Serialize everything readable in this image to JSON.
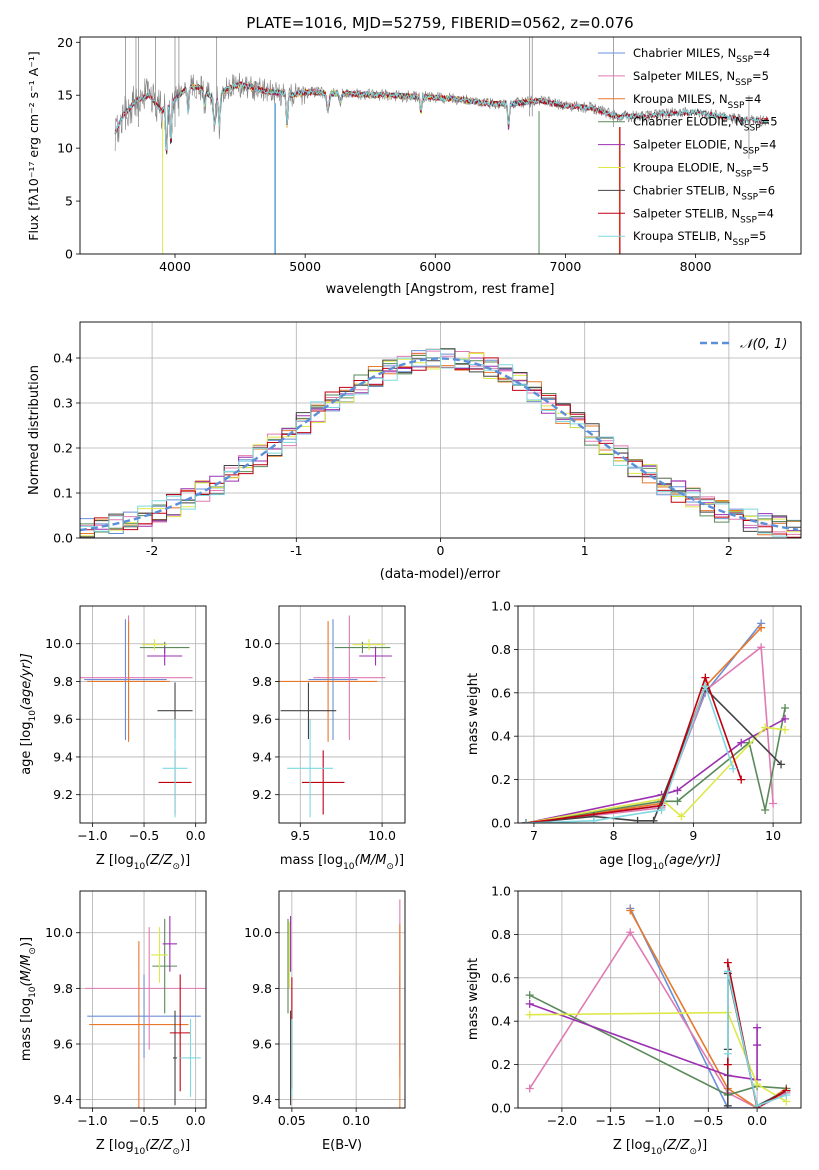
{
  "colors": {
    "Chabrier MILES": "#6a8fd8",
    "Salpeter MILES": "#e07ab4",
    "Kroupa MILES": "#e8782a",
    "Chabrier ELODIE": "#5a8a5a",
    "Salpeter ELODIE": "#9b30b0",
    "Kroupa ELODIE": "#dde84a",
    "Chabrier STELIB": "#444444",
    "Salpeter STELIB": "#c00010",
    "Kroupa STELIB": "#7fd8e0"
  },
  "chart_data": [
    {
      "id": "spectrum",
      "type": "line",
      "title": "PLATE=1016, MJD=52759, FIBERID=0562, z=0.076",
      "xlabel": "wavelength [Angstrom, rest frame]",
      "ylabel": "Flux [fλ10⁻¹⁷ erg cm⁻² s⁻¹ A⁻¹]",
      "xlim": [
        3270,
        8810
      ],
      "ylim": [
        0,
        20.5
      ],
      "xticks": [
        4000,
        5000,
        6000,
        7000,
        8000
      ],
      "yticks": [
        0,
        5,
        10,
        15,
        20
      ],
      "grid": false,
      "legend_position": "top-right",
      "data_color": "#808080",
      "data_approx": {
        "x": [
          3540,
          3600,
          3700,
          3800,
          3900,
          4000,
          4100,
          4200,
          4300,
          4400,
          4500,
          4600,
          4700,
          4800,
          4900,
          5000,
          5200,
          5400,
          5600,
          5800,
          6000,
          6200,
          6400,
          6600,
          6800,
          7000,
          7200,
          7400,
          7600,
          7800,
          8000,
          8200,
          8400,
          8560
        ],
        "y": [
          11.5,
          13.0,
          14.5,
          15.0,
          13.5,
          14.6,
          15.8,
          15.7,
          14.6,
          15.6,
          16.0,
          15.7,
          15.4,
          15.2,
          15.0,
          15.3,
          15.2,
          15.1,
          15.0,
          14.9,
          14.8,
          14.6,
          14.2,
          14.2,
          14.5,
          14.0,
          13.8,
          13.0,
          13.0,
          13.3,
          13.4,
          13.0,
          12.6,
          12.6
        ]
      },
      "series": [
        {
          "name": "Chabrier MILES, N_SSP=4",
          "label_main": "Chabrier MILES, N",
          "label_sub": "SSP",
          "label_tail": "=4",
          "key": "Chabrier MILES",
          "xrange": [
            3540,
            7410
          ]
        },
        {
          "name": "Salpeter MILES, N_SSP=5",
          "label_main": "Salpeter MILES, N",
          "label_sub": "SSP",
          "label_tail": "=5",
          "key": "Salpeter MILES",
          "xrange": [
            3540,
            7410
          ]
        },
        {
          "name": "Kroupa MILES, N_SSP=4",
          "label_main": "Kroupa MILES, N",
          "label_sub": "SSP",
          "label_tail": "=4",
          "key": "Kroupa MILES",
          "xrange": [
            3540,
            7410
          ]
        },
        {
          "name": "Chabrier ELODIE, N_SSP=5",
          "label_main": "Chabrier ELODIE, N",
          "label_sub": "SSP",
          "label_tail": "=5",
          "key": "Chabrier ELODIE",
          "xrange": [
            3900,
            6800
          ]
        },
        {
          "name": "Salpeter ELODIE, N_SSP=4",
          "label_main": "Salpeter ELODIE, N",
          "label_sub": "SSP",
          "label_tail": "=4",
          "key": "Salpeter ELODIE",
          "xrange": [
            3900,
            6800
          ]
        },
        {
          "name": "Kroupa ELODIE, N_SSP=5",
          "label_main": "Kroupa ELODIE, N",
          "label_sub": "SSP",
          "label_tail": "=5",
          "key": "Kroupa ELODIE",
          "xrange": [
            3900,
            6800
          ]
        },
        {
          "name": "Chabrier STELIB, N_SSP=6",
          "label_main": "Chabrier STELIB, N",
          "label_sub": "SSP",
          "label_tail": "=6",
          "key": "Chabrier STELIB",
          "xrange": [
            3540,
            8560
          ]
        },
        {
          "name": "Salpeter STELIB, N_SSP=4",
          "label_main": "Salpeter STELIB, N",
          "label_sub": "SSP",
          "label_tail": "=4",
          "key": "Salpeter STELIB",
          "xrange": [
            3540,
            8560
          ]
        },
        {
          "name": "Kroupa STELIB, N_SSP=5",
          "label_main": "Kroupa STELIB, N",
          "label_sub": "SSP",
          "label_tail": "=5",
          "key": "Kroupa STELIB",
          "xrange": [
            3540,
            8560
          ]
        }
      ]
    },
    {
      "id": "residuals",
      "type": "histogram",
      "xlabel": "(data-model)/error",
      "ylabel": "Normed distribution",
      "xlim": [
        -2.5,
        2.5
      ],
      "ylim": [
        0,
        0.48
      ],
      "xticks": [
        -2,
        -1,
        0,
        1,
        2
      ],
      "yticks": [
        0.0,
        0.1,
        0.2,
        0.3,
        0.4
      ],
      "ytick_labels": [
        "0.0",
        "0.1",
        "0.2",
        "0.3",
        "0.4"
      ],
      "grid": true,
      "legend_position": "top-right",
      "legend_label": "𝒩(0, 1)",
      "normal_curve": {
        "mean": 0,
        "sigma": 1,
        "color": "#5b8fd9",
        "dashed": true
      },
      "bin_width": 0.1
    },
    {
      "id": "age_vs_Z",
      "type": "errorbar",
      "xlabel_main": "Z [log",
      "xlabel_sub": "10",
      "xlabel_tail": "(Z/Z",
      "xlabel_sun": "⊙",
      "xlabel_end": ")]",
      "ylabel_main": "age  [log",
      "ylabel_sub": "10",
      "ylabel_tail": "(age/yr)]",
      "xlim": [
        -1.12,
        0.1
      ],
      "ylim": [
        9.05,
        10.2
      ],
      "xticks": [
        -1.0,
        -0.5,
        0.0
      ],
      "xtick_labels": [
        "−1.0",
        "−0.5",
        "0.0"
      ],
      "yticks": [
        9.2,
        9.4,
        9.6,
        9.8,
        10.0
      ],
      "ytick_labels": [
        "9.2",
        "9.4",
        "9.6",
        "9.8",
        "10.0"
      ],
      "grid": true,
      "points": [
        {
          "key": "Chabrier MILES",
          "x": -0.68,
          "xerr": 0.4,
          "y": 9.81,
          "yerr": 0.32
        },
        {
          "key": "Salpeter MILES",
          "x": -0.65,
          "xerr": 0.62,
          "y": 9.82,
          "yerr": 0.33
        },
        {
          "key": "Kroupa MILES",
          "x": -0.65,
          "xerr": 0.4,
          "y": 9.8,
          "yerr": 0.32
        },
        {
          "key": "Chabrier ELODIE",
          "x": -0.3,
          "xerr": 0.24,
          "y": 9.98,
          "yerr": 0.03
        },
        {
          "key": "Salpeter ELODIE",
          "x": -0.3,
          "xerr": 0.17,
          "y": 9.935,
          "yerr": 0.05
        },
        {
          "key": "Kroupa ELODIE",
          "x": -0.4,
          "xerr": 0.12,
          "y": 9.995,
          "yerr": 0.03
        },
        {
          "key": "Chabrier STELIB",
          "x": -0.2,
          "xerr": 0.17,
          "y": 9.645,
          "yerr": 0.15
        },
        {
          "key": "Salpeter STELIB",
          "x": -0.2,
          "xerr": 0.16,
          "y": 9.265,
          "yerr": 0.17
        },
        {
          "key": "Kroupa STELIB",
          "x": -0.2,
          "xerr": 0.12,
          "y": 9.34,
          "yerr": 0.26
        }
      ]
    },
    {
      "id": "age_vs_mass",
      "type": "errorbar",
      "xlabel_main": "mass [log",
      "xlabel_sub": "10",
      "xlabel_tail": "(M/M",
      "xlabel_sun": "⊙",
      "xlabel_end": ")]",
      "xlim": [
        9.37,
        10.14
      ],
      "ylim": [
        9.05,
        10.2
      ],
      "xticks": [
        9.5,
        10.0
      ],
      "xtick_labels": [
        "9.5",
        "10.0"
      ],
      "yticks": [
        9.2,
        9.4,
        9.6,
        9.8,
        10.0
      ],
      "ytick_labels": [
        "9.2",
        "9.4",
        "9.6",
        "9.8",
        "10.0"
      ],
      "grid": true,
      "points": [
        {
          "key": "Chabrier MILES",
          "x": 9.7,
          "xerr": 0.15,
          "y": 9.81,
          "yerr": 0.32
        },
        {
          "key": "Salpeter MILES",
          "x": 9.8,
          "xerr": 0.22,
          "y": 9.82,
          "yerr": 0.33
        },
        {
          "key": "Kroupa MILES",
          "x": 9.67,
          "xerr": 0.3,
          "y": 9.8,
          "yerr": 0.32
        },
        {
          "key": "Chabrier ELODIE",
          "x": 9.88,
          "xerr": 0.17,
          "y": 9.98,
          "yerr": 0.03
        },
        {
          "key": "Salpeter ELODIE",
          "x": 9.96,
          "xerr": 0.1,
          "y": 9.935,
          "yerr": 0.05
        },
        {
          "key": "Kroupa ELODIE",
          "x": 9.92,
          "xerr": 0.1,
          "y": 9.995,
          "yerr": 0.03
        },
        {
          "key": "Chabrier STELIB",
          "x": 9.55,
          "xerr": 0.17,
          "y": 9.645,
          "yerr": 0.15
        },
        {
          "key": "Salpeter STELIB",
          "x": 9.64,
          "xerr": 0.13,
          "y": 9.265,
          "yerr": 0.17
        },
        {
          "key": "Kroupa STELIB",
          "x": 9.56,
          "xerr": 0.14,
          "y": 9.34,
          "yerr": 0.26
        }
      ]
    },
    {
      "id": "weight_vs_age",
      "type": "line",
      "xlabel_main": "age  [log",
      "xlabel_sub": "10",
      "xlabel_tail": "(age/yr)]",
      "ylabel": "mass weight",
      "xlim": [
        6.8,
        10.35
      ],
      "ylim": [
        0,
        1.0
      ],
      "xticks": [
        7,
        8,
        9,
        10
      ],
      "yticks": [
        0.0,
        0.2,
        0.4,
        0.6,
        0.8,
        1.0
      ],
      "ytick_labels": [
        "0.0",
        "0.2",
        "0.4",
        "0.6",
        "0.8",
        "1.0"
      ],
      "grid": true,
      "series": [
        {
          "key": "Chabrier MILES",
          "x": [
            6.9,
            8.6,
            9.15,
            9.85
          ],
          "y": [
            0.0,
            0.08,
            0.6,
            0.92
          ]
        },
        {
          "key": "Salpeter MILES",
          "x": [
            6.9,
            8.6,
            9.15,
            9.85,
            10.0
          ],
          "y": [
            0.0,
            0.07,
            0.61,
            0.81,
            0.09
          ]
        },
        {
          "key": "Kroupa MILES",
          "x": [
            6.9,
            8.6,
            9.15,
            9.85
          ],
          "y": [
            0.0,
            0.09,
            0.63,
            0.9
          ]
        },
        {
          "key": "Chabrier ELODIE",
          "x": [
            6.9,
            8.6,
            8.8,
            9.7,
            9.9,
            10.15
          ],
          "y": [
            0.0,
            0.1,
            0.1,
            0.37,
            0.06,
            0.53
          ]
        },
        {
          "key": "Salpeter ELODIE",
          "x": [
            6.9,
            8.6,
            8.8,
            9.6,
            10.15
          ],
          "y": [
            0.0,
            0.13,
            0.15,
            0.37,
            0.48
          ]
        },
        {
          "key": "Kroupa ELODIE",
          "x": [
            6.9,
            8.6,
            8.85,
            9.9,
            10.15
          ],
          "y": [
            0.0,
            0.11,
            0.03,
            0.44,
            0.43
          ]
        },
        {
          "key": "Chabrier STELIB",
          "x": [
            6.9,
            7.75,
            8.3,
            8.5,
            9.15,
            10.1
          ],
          "y": [
            0.0,
            0.03,
            0.01,
            0.01,
            0.62,
            0.27
          ]
        },
        {
          "key": "Salpeter STELIB",
          "x": [
            6.9,
            8.6,
            9.15,
            9.6
          ],
          "y": [
            0.0,
            0.08,
            0.67,
            0.2
          ]
        },
        {
          "key": "Kroupa STELIB",
          "x": [
            6.9,
            7.75,
            8.6,
            9.15,
            9.5
          ],
          "y": [
            0.0,
            0.01,
            0.06,
            0.63,
            0.25
          ]
        }
      ]
    },
    {
      "id": "mass_vs_Z",
      "type": "errorbar",
      "xlabel_main": "Z [log",
      "xlabel_sub": "10",
      "xlabel_tail": "(Z/Z",
      "xlabel_sun": "⊙",
      "xlabel_end": ")]",
      "ylabel_main": "mass [log",
      "ylabel_sub": "10",
      "ylabel_tail": "(M/M",
      "ylabel_sun": "⊙",
      "ylabel_end": ")]",
      "xlim": [
        -1.12,
        0.1
      ],
      "ylim": [
        9.37,
        10.15
      ],
      "xticks": [
        -1.0,
        -0.5,
        0.0
      ],
      "xtick_labels": [
        "−1.0",
        "−0.5",
        "0.0"
      ],
      "yticks": [
        9.4,
        9.6,
        9.8,
        10.0
      ],
      "ytick_labels": [
        "9.4",
        "9.6",
        "9.8",
        "10.0"
      ],
      "grid": true,
      "points": [
        {
          "key": "Chabrier MILES",
          "x": -0.5,
          "xerr": 0.55,
          "y": 9.7,
          "yerr": 0.15
        },
        {
          "key": "Salpeter MILES",
          "x": -0.45,
          "xerr": 0.62,
          "y": 9.8,
          "yerr": 0.22
        },
        {
          "key": "Kroupa MILES",
          "x": -0.55,
          "xerr": 0.48,
          "y": 9.67,
          "yerr": 0.3
        },
        {
          "key": "Chabrier ELODIE",
          "x": -0.3,
          "xerr": 0.12,
          "y": 9.88,
          "yerr": 0.17
        },
        {
          "key": "Salpeter ELODIE",
          "x": -0.25,
          "xerr": 0.07,
          "y": 9.96,
          "yerr": 0.1
        },
        {
          "key": "Kroupa ELODIE",
          "x": -0.35,
          "xerr": 0.08,
          "y": 9.92,
          "yerr": 0.1
        },
        {
          "key": "Chabrier STELIB",
          "x": -0.2,
          "xerr": 0.02,
          "y": 9.55,
          "yerr": 0.17
        },
        {
          "key": "Salpeter STELIB",
          "x": -0.15,
          "xerr": 0.1,
          "y": 9.64,
          "yerr": 0.21
        },
        {
          "key": "Kroupa STELIB",
          "x": -0.05,
          "xerr": 0.1,
          "y": 9.55,
          "yerr": 0.14
        }
      ]
    },
    {
      "id": "mass_vs_EBV",
      "type": "errorbar",
      "xlabel": "E(B-V)",
      "xlim": [
        0.04,
        0.138
      ],
      "ylim": [
        9.37,
        10.15
      ],
      "xticks": [
        0.05,
        0.1
      ],
      "xtick_labels": [
        "0.05",
        "0.10"
      ],
      "yticks": [
        9.4,
        9.6,
        9.8,
        10.0
      ],
      "ytick_labels": [
        "9.4",
        "9.6",
        "9.8",
        "10.0"
      ],
      "grid": true,
      "points": [
        {
          "key": "Chabrier MILES",
          "x": 0.134,
          "xerr": 0.0,
          "y": 9.7,
          "yerr": 0.15
        },
        {
          "key": "Salpeter MILES",
          "x": 0.134,
          "xerr": 0.0,
          "y": 9.8,
          "yerr": 0.32
        },
        {
          "key": "Kroupa MILES",
          "x": 0.134,
          "xerr": 0.0,
          "y": 9.67,
          "yerr": 0.36
        },
        {
          "key": "Chabrier ELODIE",
          "x": 0.047,
          "xerr": 0.0,
          "y": 9.88,
          "yerr": 0.17
        },
        {
          "key": "Salpeter ELODIE",
          "x": 0.049,
          "xerr": 0.0,
          "y": 9.96,
          "yerr": 0.1
        },
        {
          "key": "Kroupa ELODIE",
          "x": 0.048,
          "xerr": 0.0,
          "y": 9.92,
          "yerr": 0.12
        },
        {
          "key": "Chabrier STELIB",
          "x": 0.049,
          "xerr": 0.0,
          "y": 9.55,
          "yerr": 0.17
        },
        {
          "key": "Salpeter STELIB",
          "x": 0.05,
          "xerr": 0.0,
          "y": 9.64,
          "yerr": 0.2
        },
        {
          "key": "Kroupa STELIB",
          "x": 0.05,
          "xerr": 0.0,
          "y": 9.55,
          "yerr": 0.14
        }
      ]
    },
    {
      "id": "weight_vs_Z",
      "type": "line",
      "xlabel_main": "Z [log",
      "xlabel_sub": "10",
      "xlabel_tail": "(Z/Z",
      "xlabel_sun": "⊙",
      "xlabel_end": ")]",
      "ylabel": "mass weight",
      "xlim": [
        -2.45,
        0.45
      ],
      "ylim": [
        0,
        1.0
      ],
      "xticks": [
        -2.0,
        -1.5,
        -1.0,
        -0.5,
        0.0
      ],
      "xtick_labels": [
        "−2.0",
        "−1.5",
        "−1.0",
        "−0.5",
        "0.0"
      ],
      "yticks": [
        0.0,
        0.2,
        0.4,
        0.6,
        0.8,
        1.0
      ],
      "ytick_labels": [
        "0.0",
        "0.2",
        "0.4",
        "0.6",
        "0.8",
        "1.0"
      ],
      "grid": true,
      "series": [
        {
          "key": "Chabrier MILES",
          "x": [
            -1.3,
            -0.3,
            0.0,
            0.3
          ],
          "y": [
            0.92,
            0.0,
            0.0,
            0.08
          ]
        },
        {
          "key": "Salpeter MILES",
          "x": [
            -2.33,
            -1.3,
            -0.3,
            0.0,
            0.3
          ],
          "y": [
            0.09,
            0.81,
            0.07,
            0.0,
            0.07
          ]
        },
        {
          "key": "Kroupa MILES",
          "x": [
            -1.3,
            -0.3,
            0.0,
            0.3
          ],
          "y": [
            0.91,
            0.09,
            0.0,
            0.09
          ]
        },
        {
          "key": "Chabrier ELODIE",
          "x": [
            -2.33,
            -0.3,
            0.0,
            0.3
          ],
          "y": [
            0.52,
            0.06,
            0.1,
            0.09
          ]
        },
        {
          "key": "Salpeter ELODIE",
          "x": [
            -2.33,
            -0.3,
            0.0,
            0.0,
            0.0
          ],
          "y": [
            0.48,
            0.15,
            0.13,
            0.29,
            0.37
          ]
        },
        {
          "key": "Kroupa ELODIE",
          "x": [
            -2.33,
            -0.3,
            0.0,
            0.3
          ],
          "y": [
            0.43,
            0.44,
            0.11,
            0.03
          ]
        },
        {
          "key": "Chabrier STELIB",
          "x": [
            -0.3,
            -0.3,
            -0.3,
            0.0,
            0.3
          ],
          "y": [
            0.01,
            0.27,
            0.62,
            0.01,
            0.08
          ]
        },
        {
          "key": "Salpeter STELIB",
          "x": [
            -0.3,
            -0.3,
            0.0,
            0.3
          ],
          "y": [
            0.2,
            0.67,
            0.0,
            0.08
          ]
        },
        {
          "key": "Kroupa STELIB",
          "x": [
            -0.3,
            -0.3,
            0.0,
            0.3
          ],
          "y": [
            0.25,
            0.63,
            0.01,
            0.06
          ]
        }
      ]
    }
  ]
}
